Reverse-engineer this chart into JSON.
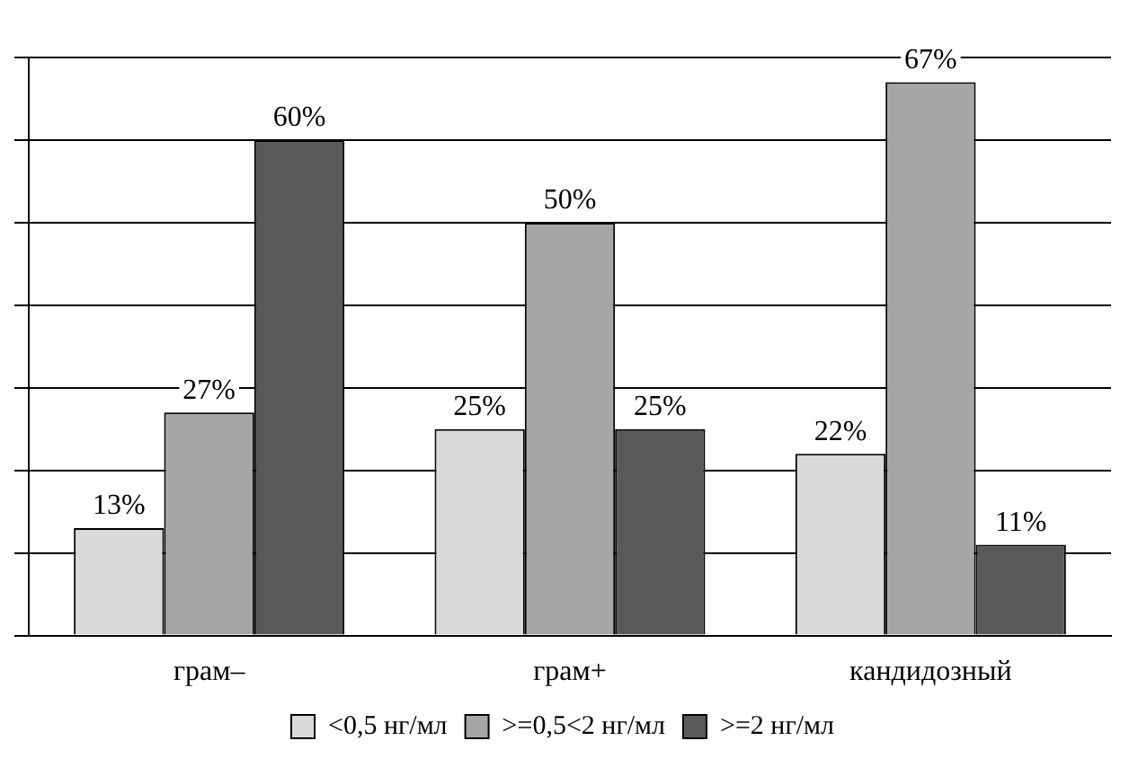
{
  "chart_data": {
    "type": "bar",
    "categories": [
      "грам–",
      "грам+",
      "кандидозный"
    ],
    "series": [
      {
        "name": "<0,5 нг/мл",
        "color": "#d9d9d9",
        "values": [
          13,
          25,
          22
        ],
        "value_labels": [
          "13%",
          "25%",
          "22%"
        ]
      },
      {
        "name": ">=0,5<2 нг/мл",
        "color": "#a6a6a6",
        "values": [
          27,
          50,
          67
        ],
        "value_labels": [
          "27%",
          "50%",
          "67%"
        ]
      },
      {
        "name": ">=2 нг/мл",
        "color": "#595959",
        "values": [
          60,
          25,
          11
        ],
        "value_labels": [
          "60%",
          "25%",
          "11%"
        ]
      }
    ],
    "grid": "y",
    "legend": "bottom",
    "tick_labels": "x"
  }
}
